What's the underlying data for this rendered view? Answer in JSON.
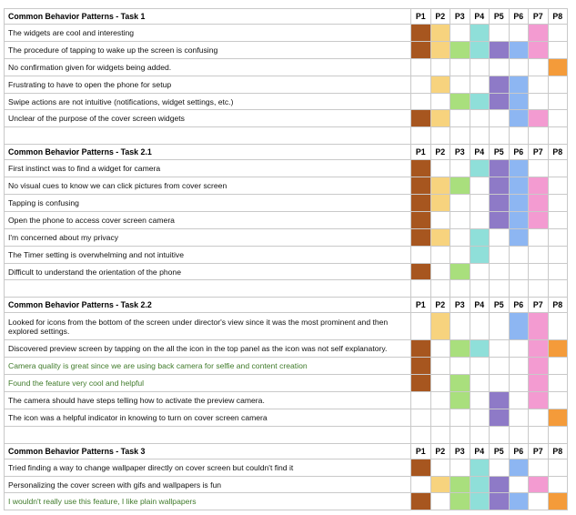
{
  "participants": [
    "P1",
    "P2",
    "P3",
    "P4",
    "P5",
    "P6",
    "P7",
    "P8"
  ],
  "colors": {
    "P1": "#a7561f",
    "P2": "#f7d37e",
    "P3": "#a9df7d",
    "P4": "#8fdfd9",
    "P5": "#8e7ac7",
    "P6": "#8db6f2",
    "P7": "#f39bd1",
    "P8": "#f49b3a"
  },
  "rows": [
    {
      "type": "header",
      "text": "Common Behavior Patterns - Task 1"
    },
    {
      "type": "item",
      "text": "The widgets are cool and interesting",
      "marks": [
        1,
        1,
        0,
        1,
        0,
        0,
        1,
        0
      ]
    },
    {
      "type": "item",
      "text": "The procedure of tapping to wake up the screen is confusing",
      "marks": [
        1,
        1,
        1,
        1,
        1,
        1,
        1,
        0
      ]
    },
    {
      "type": "item",
      "text": "No confirmation given for widgets being added.",
      "marks": [
        0,
        0,
        0,
        0,
        0,
        0,
        0,
        1
      ]
    },
    {
      "type": "item",
      "text": "Frustrating to have to open the phone for setup",
      "marks": [
        0,
        1,
        0,
        0,
        1,
        1,
        0,
        0
      ]
    },
    {
      "type": "item",
      "text": "Swipe actions are not intuitive (notifications, widget settings, etc.)",
      "marks": [
        0,
        0,
        1,
        1,
        1,
        1,
        0,
        0
      ]
    },
    {
      "type": "item",
      "text": "Unclear of the purpose of the cover screen widgets",
      "marks": [
        1,
        1,
        0,
        0,
        0,
        1,
        1,
        0
      ]
    },
    {
      "type": "spacer"
    },
    {
      "type": "header",
      "text": "Common Behavior Patterns - Task 2.1"
    },
    {
      "type": "item",
      "text": "First instinct was to find a widget for camera",
      "marks": [
        1,
        0,
        0,
        1,
        1,
        1,
        0,
        0
      ]
    },
    {
      "type": "item",
      "text": "No visual cues to know we can click pictures from cover screen",
      "marks": [
        1,
        1,
        1,
        0,
        1,
        1,
        1,
        0
      ]
    },
    {
      "type": "item",
      "text": "Tapping is confusing",
      "marks": [
        1,
        1,
        0,
        0,
        1,
        1,
        1,
        0
      ]
    },
    {
      "type": "item",
      "text": "Open the phone to access cover screen camera",
      "marks": [
        1,
        0,
        0,
        0,
        1,
        1,
        1,
        0
      ]
    },
    {
      "type": "item",
      "text": "I'm concerned about my privacy",
      "marks": [
        1,
        1,
        0,
        1,
        0,
        1,
        0,
        0
      ]
    },
    {
      "type": "item",
      "text": "The Timer setting is overwhelming and not intuitive",
      "marks": [
        0,
        0,
        0,
        1,
        0,
        0,
        0,
        0
      ]
    },
    {
      "type": "item",
      "text": "Difficult to understand the orientation of the phone",
      "marks": [
        1,
        0,
        1,
        0,
        0,
        0,
        0,
        0
      ]
    },
    {
      "type": "spacer"
    },
    {
      "type": "header",
      "text": "Common Behavior Patterns - Task 2.2"
    },
    {
      "type": "item",
      "text": "Looked for icons from the bottom of the screen under director's view since it was the most prominent and then explored settings.",
      "marks": [
        0,
        1,
        0,
        0,
        0,
        1,
        1,
        0
      ],
      "tall": true
    },
    {
      "type": "item",
      "text": "Discovered preview screen by tapping on the all the icon in the top panel as the icon was not self explanatory.",
      "marks": [
        1,
        0,
        1,
        1,
        0,
        0,
        1,
        1
      ]
    },
    {
      "type": "item",
      "text": "Camera quality is great since we are using back camera for selfie and content creation",
      "marks": [
        1,
        0,
        0,
        0,
        0,
        0,
        1,
        0
      ],
      "green": true
    },
    {
      "type": "item",
      "text": "Found the feature very cool and helpful",
      "marks": [
        1,
        0,
        1,
        0,
        0,
        0,
        1,
        0
      ],
      "green": true
    },
    {
      "type": "item",
      "text": "The camera should have steps telling how to activate the preview camera.",
      "marks": [
        0,
        0,
        1,
        0,
        1,
        0,
        1,
        0
      ]
    },
    {
      "type": "item",
      "text": "The icon was a helpful indicator in knowing to turn on cover screen camera",
      "marks": [
        0,
        0,
        0,
        0,
        1,
        0,
        0,
        1
      ]
    },
    {
      "type": "spacer"
    },
    {
      "type": "header",
      "text": "Common Behavior Patterns - Task 3"
    },
    {
      "type": "item",
      "text": "Tried finding a way to change wallpaper directly on cover screen but couldn't find it",
      "marks": [
        1,
        0,
        0,
        1,
        0,
        1,
        0,
        0
      ]
    },
    {
      "type": "item",
      "text": "Personalizing the cover screen with gifs and wallpapers is fun",
      "marks": [
        0,
        1,
        1,
        1,
        1,
        0,
        1,
        0
      ]
    },
    {
      "type": "item",
      "text": "I wouldn't really use this feature, I like plain wallpapers",
      "marks": [
        1,
        0,
        1,
        1,
        1,
        1,
        0,
        1
      ],
      "green": true
    }
  ]
}
